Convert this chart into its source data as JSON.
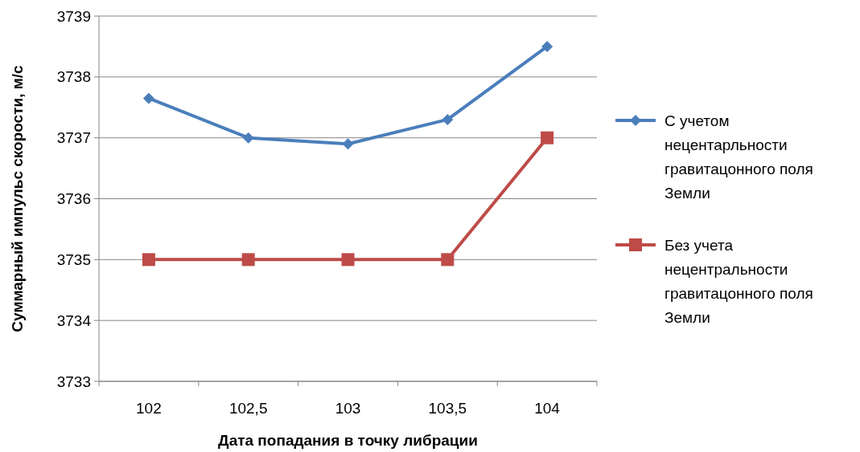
{
  "chart_data": {
    "type": "line",
    "xlabel": "Дата попадания в точку либрации",
    "ylabel": "Суммарный импульс скорости, м/с",
    "categories": [
      "102",
      "102,5",
      "103",
      "103,5",
      "104"
    ],
    "series": [
      {
        "name": "С учетом нецентарльности гравитацонного поля Земли",
        "color": "#4a7ebb",
        "marker": "diamond",
        "values": [
          3737.65,
          3737.0,
          3736.9,
          3737.3,
          3738.5
        ]
      },
      {
        "name": "Без учета нецентральности гравитацонного поля Земли",
        "color": "#be4b48",
        "marker": "square",
        "values": [
          3735,
          3735,
          3735,
          3735,
          3737
        ]
      }
    ],
    "ylim": [
      3733,
      3739
    ],
    "yticks": [
      3733,
      3734,
      3735,
      3736,
      3737,
      3738,
      3739
    ],
    "grid": "y",
    "legend": "right",
    "line_style": "solid"
  }
}
